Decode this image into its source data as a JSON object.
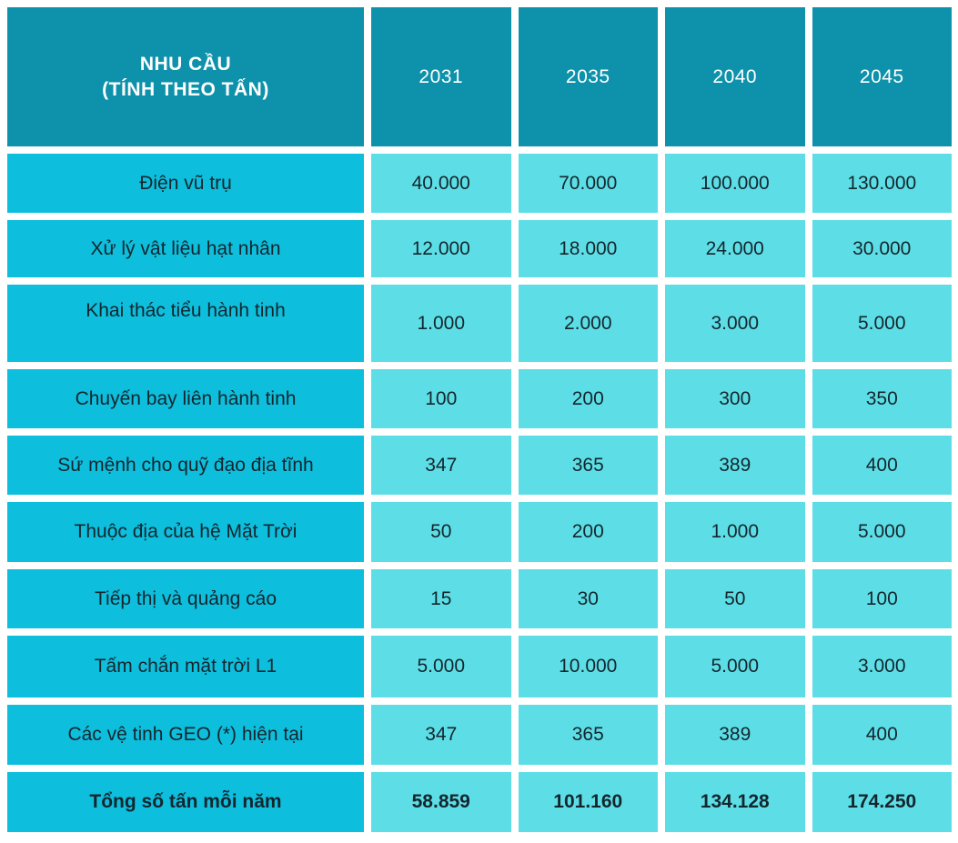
{
  "colors": {
    "header_bg": "#0E92AB",
    "label_bg": "#0EBEDD",
    "value_bg": "#5DDEE6",
    "header_text": "#FFFFFF",
    "body_text": "#14262D",
    "gap": "#FFFFFF"
  },
  "chart_data": {
    "type": "table",
    "title": "NHU CẦU (TÍNH THEO TẤN)",
    "header": {
      "label_line1": "NHU CẦU",
      "label_line2": "(TÍNH THEO TẤN)",
      "years": [
        "2031",
        "2035",
        "2040",
        "2045"
      ]
    },
    "rows": [
      {
        "label": "Điện vũ trụ",
        "display": [
          "40.000",
          "70.000",
          "100.000",
          "130.000"
        ],
        "values": [
          40000,
          70000,
          100000,
          130000
        ]
      },
      {
        "label": "Xử lý vật liệu hạt nhân",
        "display": [
          "12.000",
          "18.000",
          "24.000",
          "30.000"
        ],
        "values": [
          12000,
          18000,
          24000,
          30000
        ]
      },
      {
        "label": "Khai thác tiểu hành tinh",
        "display": [
          "1.000",
          "2.000",
          "3.000",
          "5.000"
        ],
        "values": [
          1000,
          2000,
          3000,
          5000
        ]
      },
      {
        "label": "Chuyến bay liên hành tinh",
        "display": [
          "100",
          "200",
          "300",
          "350"
        ],
        "values": [
          100,
          200,
          300,
          350
        ]
      },
      {
        "label": "Sứ mệnh cho quỹ đạo địa tĩnh",
        "display": [
          "347",
          "365",
          "389",
          "400"
        ],
        "values": [
          347,
          365,
          389,
          400
        ]
      },
      {
        "label": "Thuộc địa của hệ Mặt Trời",
        "display": [
          "50",
          "200",
          "1.000",
          "5.000"
        ],
        "values": [
          50,
          200,
          1000,
          5000
        ]
      },
      {
        "label": "Tiếp thị và quảng cáo",
        "display": [
          "15",
          "30",
          "50",
          "100"
        ],
        "values": [
          15,
          30,
          50,
          100
        ]
      },
      {
        "label": "Tấm chắn mặt trời L1",
        "display": [
          "5.000",
          "10.000",
          "5.000",
          "3.000"
        ],
        "values": [
          5000,
          10000,
          5000,
          3000
        ]
      },
      {
        "label": "Các vệ tinh GEO (*) hiện tại",
        "display": [
          "347",
          "365",
          "389",
          "400"
        ],
        "values": [
          347,
          365,
          389,
          400
        ]
      }
    ],
    "total": {
      "label": "Tổng số tấn mỗi năm",
      "display": [
        "58.859",
        "101.160",
        "134.128",
        "174.250"
      ],
      "values": [
        58859,
        101160,
        134128,
        174250
      ]
    }
  }
}
